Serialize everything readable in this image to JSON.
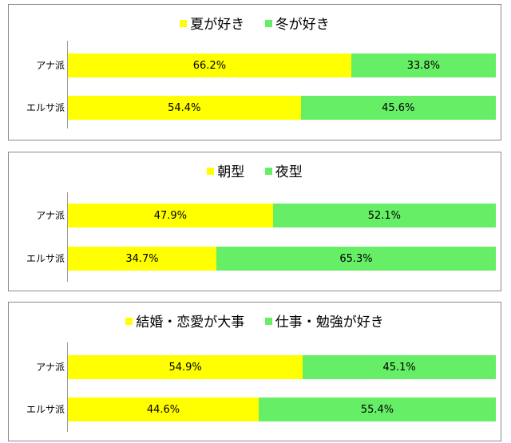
{
  "colors": {
    "series1": "#ffff00",
    "series2": "#66ee66"
  },
  "chart_data": [
    {
      "type": "bar",
      "stacked": true,
      "orientation": "horizontal",
      "categories": [
        "アナ派",
        "エルサ派"
      ],
      "series": [
        {
          "name": "夏が好き",
          "values": [
            66.2,
            54.4
          ],
          "labels": [
            "66.2%",
            "54.4%"
          ]
        },
        {
          "name": "冬が好き",
          "values": [
            33.8,
            45.6
          ],
          "labels": [
            "33.8%",
            "45.6%"
          ]
        }
      ],
      "xlim": [
        0,
        100
      ],
      "legend": "top"
    },
    {
      "type": "bar",
      "stacked": true,
      "orientation": "horizontal",
      "categories": [
        "アナ派",
        "エルサ派"
      ],
      "series": [
        {
          "name": "朝型",
          "values": [
            47.9,
            34.7
          ],
          "labels": [
            "47.9%",
            "34.7%"
          ]
        },
        {
          "name": "夜型",
          "values": [
            52.1,
            65.3
          ],
          "labels": [
            "52.1%",
            "65.3%"
          ]
        }
      ],
      "xlim": [
        0,
        100
      ],
      "legend": "top"
    },
    {
      "type": "bar",
      "stacked": true,
      "orientation": "horizontal",
      "categories": [
        "アナ派",
        "エルサ派"
      ],
      "series": [
        {
          "name": "結婚・恋愛が大事",
          "values": [
            54.9,
            44.6
          ],
          "labels": [
            "54.9%",
            "44.6%"
          ]
        },
        {
          "name": "仕事・勉強が好き",
          "values": [
            45.1,
            55.4
          ],
          "labels": [
            "45.1%",
            "55.4%"
          ]
        }
      ],
      "xlim": [
        0,
        100
      ],
      "legend": "top"
    }
  ]
}
